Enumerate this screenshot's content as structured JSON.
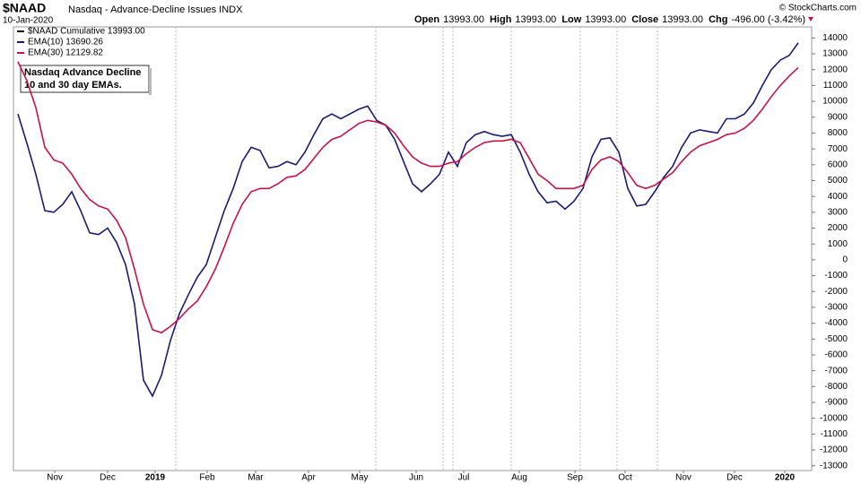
{
  "header": {
    "symbol": "$NAAD",
    "name": "Nasdaq - Advance-Decline Issues INDX",
    "date": "10-Jan-2020",
    "copyright": "© StockCharts.com",
    "quote": [
      {
        "label": "Open",
        "value": "13993.00"
      },
      {
        "label": "High",
        "value": "13993.00"
      },
      {
        "label": "Low",
        "value": "13993.00"
      },
      {
        "label": "Close",
        "value": "13993.00"
      },
      {
        "label": "Chg",
        "value": "-496.00 (-3.42%)"
      }
    ]
  },
  "chart_data": {
    "type": "line",
    "legend": [
      {
        "label": "$NAAD Cumulative 13993.00",
        "color": "#000000"
      }
    ],
    "annotation": [
      "Nasdaq Advance Decline",
      "10 and 30 day EMAs."
    ],
    "xlim": [
      -0.5,
      88.5
    ],
    "xticks": [
      {
        "value": 4.1,
        "label": "Nov"
      },
      {
        "value": 10,
        "label": "Dec"
      },
      {
        "value": 15.3,
        "label": "2019"
      },
      {
        "value": 21.1,
        "label": "Feb"
      },
      {
        "value": 26.5,
        "label": "Mar"
      },
      {
        "value": 32.4,
        "label": "Apr"
      },
      {
        "value": 38.1,
        "label": "May"
      },
      {
        "value": 44.4,
        "label": "Jun"
      },
      {
        "value": 49.7,
        "label": "Jul"
      },
      {
        "value": 55.9,
        "label": "Aug"
      },
      {
        "value": 62.1,
        "label": "Sep"
      },
      {
        "value": 67.7,
        "label": "Oct"
      },
      {
        "value": 74.2,
        "label": "Nov"
      },
      {
        "value": 79.9,
        "label": "Dec"
      },
      {
        "value": 85.5,
        "label": "2020"
      }
    ],
    "ylim": [
      -13300,
      14700
    ],
    "yticks": [
      -13000,
      -12000,
      -11000,
      -10000,
      -9000,
      -8000,
      -7000,
      -6000,
      -5000,
      -4000,
      -3000,
      -2000,
      -1000,
      0,
      1000,
      2000,
      3000,
      4000,
      5000,
      6000,
      7000,
      8000,
      9000,
      10000,
      11000,
      12000,
      13000,
      14000
    ],
    "series": [
      {
        "name": "EMA(10) 13690.26",
        "color": "#1a1a7a",
        "values": [
          9200,
          7350,
          5400,
          3100,
          3000,
          3500,
          4300,
          3100,
          1700,
          1600,
          2000,
          1100,
          -300,
          -2800,
          -7600,
          -8600,
          -7300,
          -5100,
          -3400,
          -2200,
          -1100,
          -300,
          1400,
          3100,
          4500,
          6200,
          7100,
          6900,
          5800,
          5900,
          6200,
          6000,
          6800,
          7900,
          8900,
          9200,
          8900,
          9200,
          9500,
          9700,
          8800,
          8500,
          7600,
          6200,
          4800,
          4300,
          4800,
          5400,
          6800,
          5900,
          7400,
          7900,
          8100,
          7900,
          7800,
          7900,
          6800,
          5400,
          4300,
          3600,
          3700,
          3200,
          3700,
          4500,
          6500,
          7600,
          7700,
          6800,
          4500,
          3400,
          3500,
          4300,
          5200,
          5900,
          7100,
          8000,
          8200,
          8100,
          8000,
          8900,
          8900,
          9200,
          9900,
          11000,
          12000,
          12600,
          12900,
          13690
        ]
      },
      {
        "name": "EMA(30) 12129.82",
        "color": "#cc1144",
        "values": [
          12500,
          11300,
          9600,
          7100,
          6300,
          6100,
          5400,
          4500,
          3800,
          3400,
          3200,
          2500,
          1400,
          -600,
          -2800,
          -4400,
          -4600,
          -4200,
          -3700,
          -3100,
          -2600,
          -1700,
          -600,
          800,
          2300,
          3500,
          4300,
          4500,
          4500,
          4800,
          5200,
          5300,
          5700,
          6400,
          7100,
          7600,
          7800,
          8200,
          8600,
          8800,
          8700,
          8500,
          8000,
          7200,
          6500,
          6100,
          5900,
          5900,
          6100,
          6200,
          6700,
          7100,
          7400,
          7500,
          7500,
          7600,
          7400,
          6400,
          5400,
          5000,
          4500,
          4500,
          4500,
          4700,
          5700,
          6300,
          6500,
          6200,
          5500,
          4700,
          4500,
          4700,
          5100,
          5500,
          6200,
          6800,
          7200,
          7400,
          7600,
          7900,
          8000,
          8300,
          8800,
          9500,
          10300,
          11000,
          11600,
          12129.82
        ]
      }
    ]
  }
}
